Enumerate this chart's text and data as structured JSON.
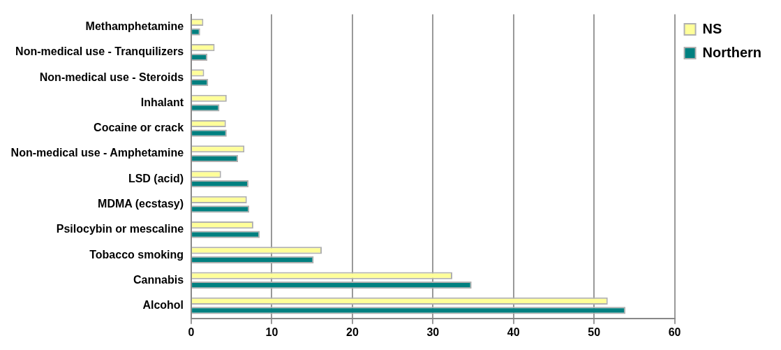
{
  "chart_data": {
    "type": "bar",
    "orientation": "horizontal",
    "categories": [
      "Methamphetamine",
      "Non-medical use - Tranquilizers",
      "Non-medical use - Steroids",
      "Inhalant",
      "Cocaine or crack",
      "Non-medical use - Amphetamine",
      "LSD (acid)",
      "MDMA (ecstasy)",
      "Psilocybin or mescaline",
      "Tobacco smoking",
      "Cannabis",
      "Alcohol"
    ],
    "series": [
      {
        "name": "NS",
        "color": "#ffff99",
        "values": [
          1.5,
          2.9,
          1.6,
          4.4,
          4.3,
          6.6,
          3.7,
          6.9,
          7.7,
          16.2,
          32.4,
          51.7
        ]
      },
      {
        "name": "Northern",
        "color": "#008080",
        "values": [
          1.1,
          2.0,
          2.1,
          3.5,
          4.4,
          5.8,
          7.1,
          7.2,
          8.5,
          15.2,
          34.8,
          53.9
        ]
      }
    ],
    "xlim": [
      0,
      60
    ],
    "xticks": [
      0,
      10,
      20,
      30,
      40,
      50,
      60
    ],
    "grid": "x",
    "legend": "top right"
  }
}
